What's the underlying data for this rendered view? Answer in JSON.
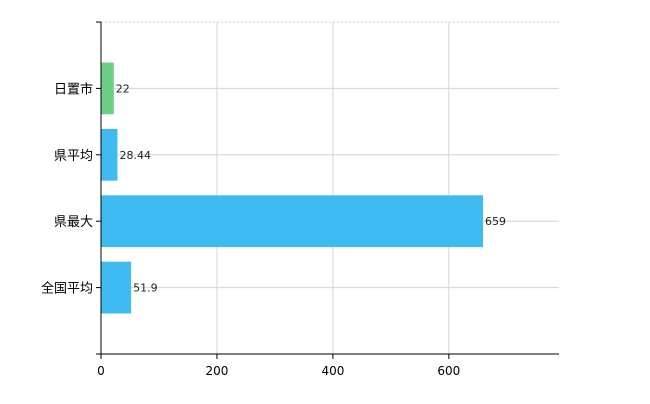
{
  "chart_data": {
    "type": "bar",
    "orientation": "horizontal",
    "title": "",
    "xlabel": "",
    "ylabel": "",
    "categories": [
      "日置市",
      "県平均",
      "県最大",
      "全国平均"
    ],
    "values": [
      22,
      28.44,
      659,
      51.9
    ],
    "value_labels": [
      "22",
      "28.44",
      "659",
      "51.9"
    ],
    "colors": [
      "#6ccf86",
      "#3ebcf2",
      "#3ebcf2",
      "#3ebcf2"
    ],
    "xlim": [
      0,
      790
    ],
    "xticks": [
      0,
      200,
      400,
      600
    ],
    "xtick_labels": [
      "0",
      "200",
      "400",
      "600"
    ],
    "grid": true,
    "legend": "none"
  }
}
